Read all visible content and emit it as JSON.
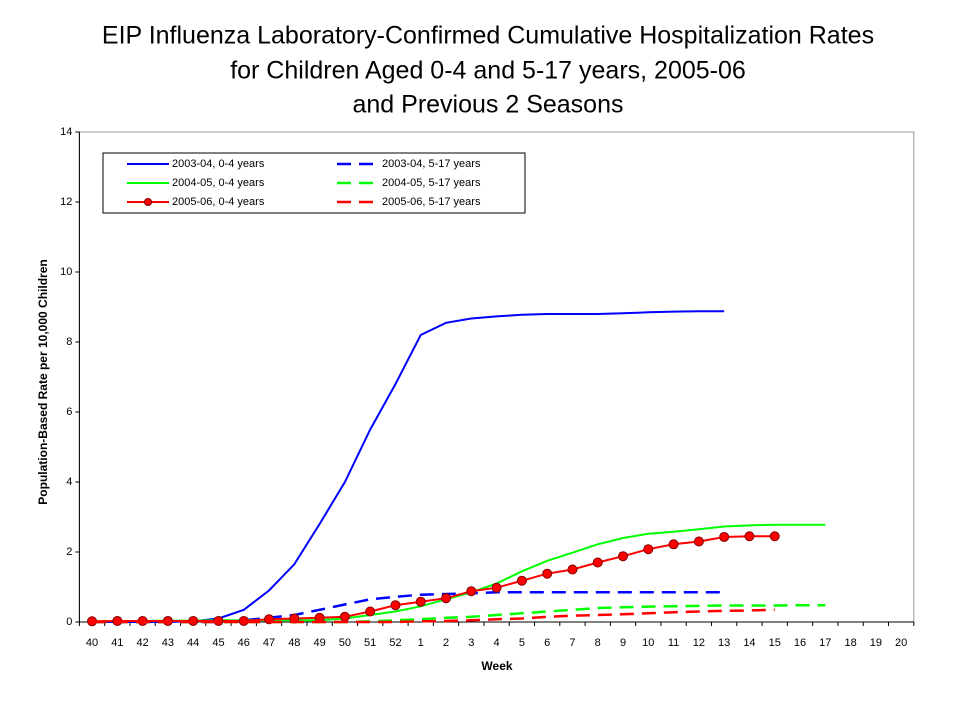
{
  "chart_data": {
    "type": "line",
    "title": [
      "EIP Influenza Laboratory-Confirmed Cumulative Hospitalization Rates",
      "for Children Aged 0-4 and 5-17 years, 2005-06",
      "and Previous 2 Seasons"
    ],
    "x_label": "Week",
    "y_label": "Population-Based Rate per 10,000 Children",
    "categories": [
      "40",
      "41",
      "42",
      "43",
      "44",
      "45",
      "46",
      "47",
      "48",
      "49",
      "50",
      "51",
      "52",
      "1",
      "2",
      "3",
      "4",
      "5",
      "6",
      "7",
      "8",
      "9",
      "10",
      "11",
      "12",
      "13",
      "14",
      "15",
      "16",
      "17",
      "18",
      "19",
      "20"
    ],
    "ylim": [
      0,
      14
    ],
    "yticks": [
      0,
      2,
      4,
      6,
      8,
      10,
      12,
      14
    ],
    "series": [
      {
        "name": "2003-04, 0-4 years",
        "color": "#0000ff",
        "dashed": false,
        "markers": false,
        "values": [
          0,
          0,
          0,
          0,
          0.02,
          0.1,
          0.35,
          0.9,
          1.65,
          2.8,
          4.0,
          5.5,
          6.8,
          8.2,
          8.55,
          8.67,
          8.73,
          8.78,
          8.8,
          8.8,
          8.8,
          8.82,
          8.85,
          8.87,
          8.88,
          8.88,
          null,
          null,
          null,
          null,
          null,
          null,
          null
        ]
      },
      {
        "name": "2003-04, 5-17 years",
        "color": "#0000ff",
        "dashed": true,
        "markers": false,
        "values": [
          0,
          0,
          0,
          0,
          0,
          0,
          0.05,
          0.12,
          0.2,
          0.35,
          0.5,
          0.65,
          0.72,
          0.78,
          0.8,
          0.82,
          0.85,
          0.85,
          0.85,
          0.85,
          0.85,
          0.85,
          0.85,
          0.85,
          0.85,
          0.85,
          null,
          null,
          null,
          null,
          null,
          null,
          null
        ]
      },
      {
        "name": "2004-05, 0-4 years",
        "color": "#00ff00",
        "dashed": false,
        "markers": false,
        "values": [
          0.02,
          0.03,
          0.03,
          0.04,
          0.04,
          0.05,
          0.05,
          0.05,
          0.05,
          0.05,
          0.1,
          0.2,
          0.3,
          0.45,
          0.65,
          0.85,
          1.1,
          1.45,
          1.75,
          1.98,
          2.22,
          2.4,
          2.52,
          2.58,
          2.65,
          2.73,
          2.76,
          2.78,
          2.78,
          2.78,
          null,
          null,
          null
        ]
      },
      {
        "name": "2004-05, 5-17 years",
        "color": "#00ff00",
        "dashed": true,
        "markers": false,
        "values": [
          0,
          0,
          0,
          0,
          0,
          0,
          0,
          0,
          0,
          0,
          0,
          0.02,
          0.05,
          0.08,
          0.12,
          0.15,
          0.2,
          0.25,
          0.3,
          0.35,
          0.4,
          0.42,
          0.44,
          0.45,
          0.46,
          0.47,
          0.47,
          0.47,
          0.48,
          0.48,
          null,
          null,
          null
        ]
      },
      {
        "name": "2005-06, 0-4 years",
        "color": "#ff0000",
        "dashed": false,
        "markers": true,
        "values": [
          0.02,
          0.03,
          0.03,
          0.03,
          0.03,
          0.03,
          0.03,
          0.08,
          0.1,
          0.12,
          0.15,
          0.3,
          0.48,
          0.58,
          0.68,
          0.88,
          0.98,
          1.18,
          1.38,
          1.5,
          1.7,
          1.88,
          2.08,
          2.22,
          2.3,
          2.43,
          2.45,
          2.45,
          null,
          null,
          null,
          null,
          null
        ]
      },
      {
        "name": "2005-06, 5-17 years",
        "color": "#ff0000",
        "dashed": true,
        "markers": false,
        "values": [
          0,
          0,
          0,
          0,
          0,
          0,
          0,
          0,
          0,
          0,
          0,
          0,
          0,
          0.02,
          0.03,
          0.05,
          0.08,
          0.1,
          0.15,
          0.18,
          0.2,
          0.22,
          0.25,
          0.28,
          0.3,
          0.32,
          0.33,
          0.35,
          null,
          null,
          null,
          null,
          null
        ]
      }
    ]
  }
}
